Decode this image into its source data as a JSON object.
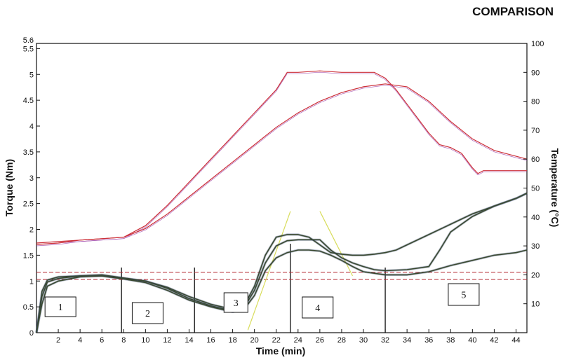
{
  "chart_data": {
    "type": "line",
    "title": "COMPARISON",
    "xlabel": "Time (min)",
    "ylabel_left": "Torque (Nm)",
    "ylabel_right": "Temperature (°C)",
    "xlim": [
      0,
      45
    ],
    "ylim_left": [
      0,
      5.6
    ],
    "ylim_right": [
      0,
      100
    ],
    "x_ticks": [
      "2",
      "4",
      "6",
      "8",
      "10",
      "12",
      "14",
      "16",
      "18",
      "20",
      "22",
      "24",
      "26",
      "28",
      "30",
      "32",
      "34",
      "36",
      "38",
      "40",
      "42",
      "44"
    ],
    "y_left_ticks": [
      "0",
      "0.5",
      "1",
      "1.5",
      "2",
      "2.5",
      "3",
      "3.5",
      "4",
      "4.5",
      "5",
      "5.5",
      "5.6"
    ],
    "y_right_ticks": [
      "10",
      "20",
      "30",
      "40",
      "50",
      "60",
      "70",
      "80",
      "90",
      "100"
    ],
    "grid": false,
    "colors": {
      "temperature": "#cc2f38",
      "torque": "#3a4a30",
      "reference": "#b3262f",
      "guide": "#d8dc5a"
    },
    "phases": [
      {
        "label": "1",
        "x": 2.2
      },
      {
        "label": "2",
        "x": 10.2
      },
      {
        "label": "3",
        "x": 18.3
      },
      {
        "label": "4",
        "x": 25.8
      },
      {
        "label": "5",
        "x": 39.2
      }
    ],
    "phase_boundaries": [
      7.8,
      14.5,
      23.3,
      32.0
    ],
    "reference_lines_torque": [
      1.03,
      1.17
    ],
    "temperature_series": [
      {
        "x": [
          0,
          2,
          4,
          6,
          8,
          10,
          12,
          14,
          16,
          18,
          20,
          22,
          23,
          24,
          26,
          28,
          30,
          31,
          32,
          33,
          34,
          35,
          36,
          37,
          38,
          39,
          40,
          40.5,
          41,
          42,
          44,
          45
        ],
        "y": [
          31,
          31.5,
          32,
          32.5,
          33,
          37,
          44,
          52,
          60,
          68,
          76,
          84,
          90,
          90,
          90.5,
          90,
          90,
          90,
          88,
          84,
          79,
          74,
          69,
          65,
          64,
          62,
          57,
          55,
          56,
          56,
          56,
          56
        ]
      },
      {
        "x": [
          0,
          2,
          4,
          6,
          8,
          10,
          12,
          14,
          16,
          18,
          20,
          22,
          24,
          26,
          28,
          30,
          32,
          34,
          36,
          38,
          40,
          42,
          44,
          45
        ],
        "y": [
          30.5,
          31,
          32,
          32.5,
          33,
          36,
          41,
          47,
          53,
          59,
          65,
          71,
          76,
          80,
          83,
          85,
          86,
          85,
          80,
          73,
          67,
          63,
          61,
          60
        ]
      }
    ],
    "torque_series": [
      {
        "x": [
          0,
          0.5,
          1,
          2,
          4,
          6,
          8,
          10,
          12,
          14,
          16,
          18,
          19,
          20,
          21,
          22,
          23,
          24,
          25,
          26,
          27,
          28,
          29,
          30,
          31,
          32,
          33,
          34,
          36,
          38,
          40,
          42,
          44,
          45
        ],
        "y": [
          0,
          0.8,
          1.02,
          1.08,
          1.1,
          1.1,
          1.05,
          1.0,
          0.88,
          0.7,
          0.55,
          0.45,
          0.5,
          0.9,
          1.5,
          1.85,
          1.9,
          1.9,
          1.85,
          1.7,
          1.55,
          1.52,
          1.5,
          1.5,
          1.52,
          1.55,
          1.6,
          1.7,
          1.9,
          2.1,
          2.3,
          2.45,
          2.6,
          2.7
        ]
      },
      {
        "x": [
          0,
          0.5,
          1,
          2,
          4,
          6,
          8,
          10,
          12,
          14,
          16,
          18,
          19,
          20,
          21,
          22,
          23,
          24,
          25,
          26,
          27,
          28,
          29,
          30,
          31,
          32,
          34,
          36,
          37,
          38,
          40,
          42,
          44,
          45
        ],
        "y": [
          0,
          0.7,
          0.98,
          1.05,
          1.1,
          1.12,
          1.06,
          1.0,
          0.86,
          0.66,
          0.52,
          0.42,
          0.47,
          0.82,
          1.35,
          1.68,
          1.78,
          1.8,
          1.8,
          1.8,
          1.6,
          1.45,
          1.35,
          1.28,
          1.22,
          1.2,
          1.22,
          1.28,
          1.6,
          1.95,
          2.25,
          2.45,
          2.6,
          2.7
        ]
      },
      {
        "x": [
          0,
          0.5,
          1,
          2,
          4,
          6,
          8,
          10,
          12,
          14,
          16,
          18,
          19,
          20,
          21,
          22,
          23,
          24,
          25,
          26,
          27,
          28,
          29,
          30,
          31,
          32,
          34,
          36,
          38,
          40,
          42,
          44,
          45
        ],
        "y": [
          0,
          0.55,
          0.9,
          1.0,
          1.08,
          1.1,
          1.04,
          0.97,
          0.82,
          0.63,
          0.5,
          0.4,
          0.44,
          0.72,
          1.2,
          1.45,
          1.55,
          1.6,
          1.6,
          1.58,
          1.5,
          1.4,
          1.28,
          1.18,
          1.15,
          1.12,
          1.12,
          1.18,
          1.3,
          1.4,
          1.5,
          1.55,
          1.6
        ]
      }
    ],
    "guide_lines": [
      {
        "x": [
          19.4,
          23.3
        ],
        "y": [
          0.05,
          2.35
        ]
      },
      {
        "x": [
          26.0,
          29.0
        ],
        "y": [
          2.35,
          1.1
        ]
      }
    ]
  }
}
